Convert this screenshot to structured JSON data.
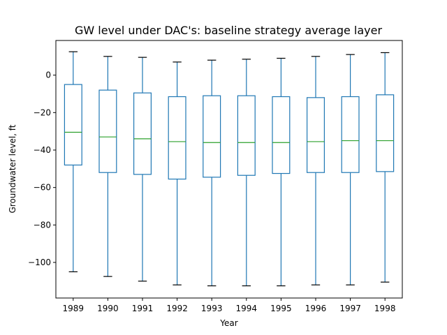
{
  "chart_data": {
    "type": "boxplot",
    "title": "GW level under DAC's: baseline strategy average layer",
    "xlabel": "Year",
    "ylabel": "Groundwater level, ft",
    "ylim": [
      -119,
      18.5
    ],
    "yticks": [
      0,
      -20,
      -40,
      -60,
      -80,
      -100
    ],
    "ytick_labels": [
      "0",
      "−20",
      "−40",
      "−60",
      "−80",
      "−100"
    ],
    "grid": false,
    "colors": {
      "box": "#1f77b4",
      "median": "#2ca02c",
      "cap": "#000000"
    },
    "categories": [
      "1989",
      "1990",
      "1991",
      "1992",
      "1993",
      "1994",
      "1995",
      "1996",
      "1997",
      "1998"
    ],
    "boxes": [
      {
        "whislo": -105.0,
        "q1": -48.0,
        "med": -30.5,
        "q3": -5.0,
        "whishi": 12.5
      },
      {
        "whislo": -107.5,
        "q1": -52.0,
        "med": -33.0,
        "q3": -8.0,
        "whishi": 10.0
      },
      {
        "whislo": -110.0,
        "q1": -53.0,
        "med": -34.0,
        "q3": -9.5,
        "whishi": 9.5
      },
      {
        "whislo": -112.0,
        "q1": -55.5,
        "med": -35.5,
        "q3": -11.5,
        "whishi": 7.0
      },
      {
        "whislo": -112.5,
        "q1": -54.5,
        "med": -36.0,
        "q3": -11.0,
        "whishi": 8.0
      },
      {
        "whislo": -112.5,
        "q1": -53.5,
        "med": -36.0,
        "q3": -11.0,
        "whishi": 8.5
      },
      {
        "whislo": -112.5,
        "q1": -52.5,
        "med": -36.0,
        "q3": -11.5,
        "whishi": 9.0
      },
      {
        "whislo": -112.0,
        "q1": -52.0,
        "med": -35.5,
        "q3": -12.0,
        "whishi": 10.0
      },
      {
        "whislo": -112.0,
        "q1": -52.0,
        "med": -35.0,
        "q3": -11.5,
        "whishi": 11.0
      },
      {
        "whislo": -110.5,
        "q1": -51.5,
        "med": -35.0,
        "q3": -10.5,
        "whishi": 12.0
      }
    ]
  }
}
